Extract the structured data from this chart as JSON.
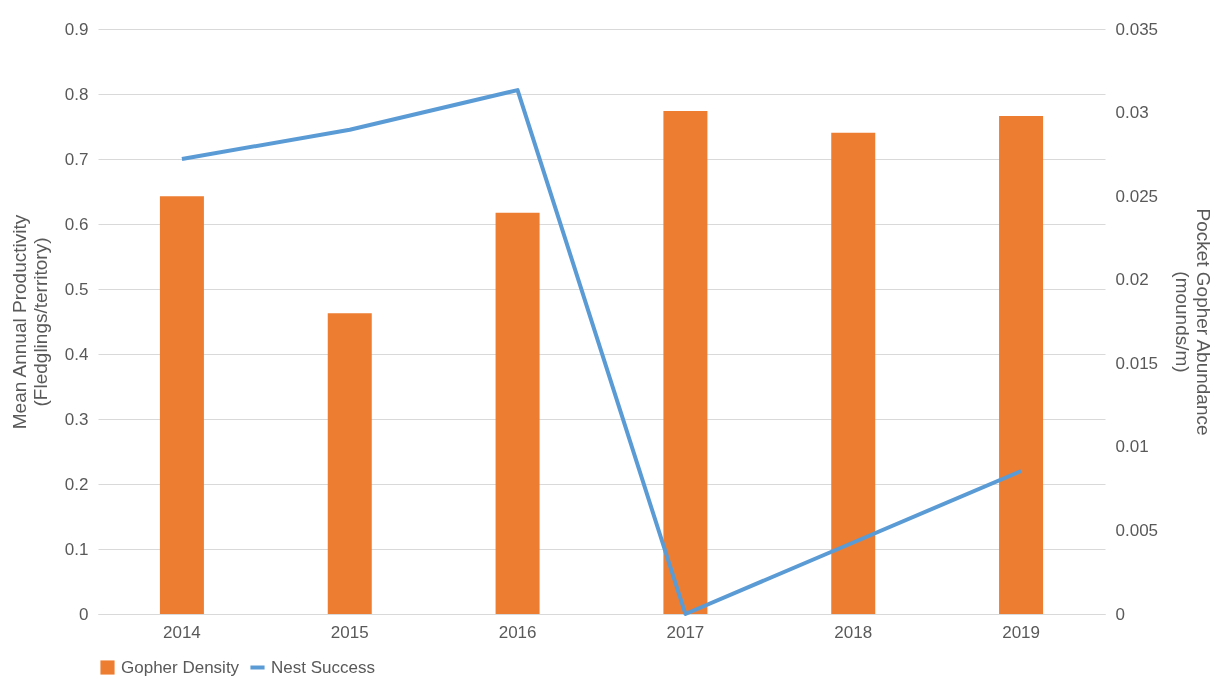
{
  "chart_data": {
    "type": "bar",
    "categories": [
      "2014",
      "2015",
      "2016",
      "2017",
      "2018",
      "2019"
    ],
    "series": [
      {
        "name": "Gopher Density",
        "axis": "y2",
        "color": "#ed7d31",
        "values": [
          0.025,
          0.018,
          0.024,
          0.0301,
          0.0288,
          0.0298
        ]
      },
      {
        "name": "Nest Success",
        "type": "line",
        "color": "#5b9bd5",
        "values": [
          0.7,
          0.745,
          0.806,
          0,
          0.11,
          0.22
        ]
      }
    ],
    "ylabel": "Mean Annual Productivity\n(Fledglings/territory)",
    "y2label": "Pocket Gopher Abundance\n(mounds/m)",
    "ylim": [
      0,
      0.9
    ],
    "yticks": [
      0,
      0.1,
      0.2,
      0.3,
      0.4,
      0.5,
      0.6,
      0.7,
      0.8,
      0.9
    ],
    "y2lim": [
      0,
      0.035
    ],
    "y2ticks": [
      0,
      0.005,
      0.01,
      0.015,
      0.02,
      0.025,
      0.03,
      0.035
    ],
    "grid": "y",
    "legend": "bottom",
    "marker": "none",
    "line_style": "solid"
  }
}
